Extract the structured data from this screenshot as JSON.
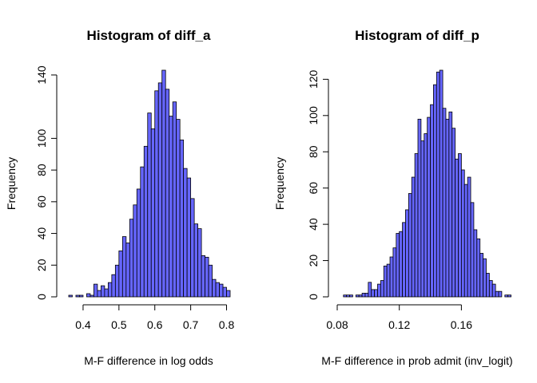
{
  "chart_data": [
    {
      "type": "bar",
      "title": "Histogram of diff_a",
      "xlabel": "M-F difference in log odds",
      "ylabel": "Frequency",
      "bin_width": 0.01,
      "bin_start": 0.36,
      "x_ticks": [
        0.4,
        0.5,
        0.6,
        0.7,
        0.8
      ],
      "x_tick_labels": [
        "0.4",
        "0.5",
        "0.6",
        "0.7",
        "0.8"
      ],
      "y_ticks": [
        0,
        20,
        40,
        60,
        80,
        100,
        140
      ],
      "y_tick_labels": [
        "0",
        "20",
        "40",
        "60",
        "80",
        "100",
        "140"
      ],
      "xlim": [
        0.36,
        0.81
      ],
      "ylim": [
        0,
        143
      ],
      "bar_color": "#6666ff",
      "values": [
        1,
        0,
        1,
        1,
        0,
        2,
        1,
        8,
        4,
        7,
        5,
        9,
        14,
        20,
        29,
        38,
        34,
        49,
        58,
        68,
        82,
        95,
        116,
        106,
        130,
        135,
        143,
        131,
        114,
        123,
        112,
        99,
        81,
        75,
        62,
        46,
        43,
        26,
        25,
        20,
        11,
        9,
        8,
        6,
        4
      ]
    },
    {
      "type": "bar",
      "title": "Histogram of diff_p",
      "xlabel": "M-F difference in prob admit (inv_logit)",
      "ylabel": "Frequency",
      "bin_width": 0.002,
      "bin_start": 0.084,
      "x_ticks": [
        0.08,
        0.12,
        0.16
      ],
      "x_tick_labels": [
        "0.08",
        "0.12",
        "0.16"
      ],
      "y_ticks": [
        0,
        20,
        40,
        60,
        80,
        100,
        120
      ],
      "y_tick_labels": [
        "0",
        "20",
        "40",
        "60",
        "80",
        "100",
        "120"
      ],
      "xlim": [
        0.08,
        0.184
      ],
      "ylim": [
        0,
        125
      ],
      "bar_color": "#6666ff",
      "values": [
        1,
        1,
        1,
        0,
        1,
        1,
        2,
        2,
        8,
        4,
        4,
        7,
        9,
        17,
        18,
        22,
        27,
        35,
        36,
        41,
        48,
        57,
        66,
        79,
        98,
        86,
        90,
        99,
        106,
        117,
        124,
        125,
        104,
        98,
        102,
        93,
        76,
        79,
        70,
        62,
        66,
        52,
        37,
        32,
        24,
        21,
        13,
        9,
        7,
        3,
        3,
        0,
        1,
        1
      ]
    }
  ]
}
